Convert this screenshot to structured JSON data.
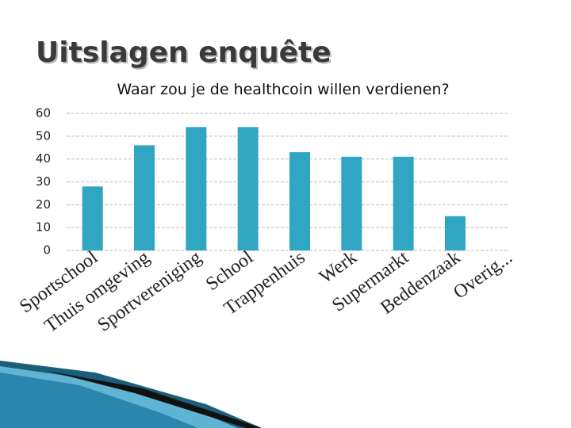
{
  "slide_title": "Uitslagen enquête",
  "chart_data": {
    "type": "bar",
    "title": "Waar zou je de healthcoin willen verdienen?",
    "categories": [
      "Sportschool",
      "Thuis omgeving",
      "Sportvereniging",
      "School",
      "Trappenhuis",
      "Werk",
      "Supermarkt",
      "Beddenzaak",
      "Overig..."
    ],
    "values": [
      28,
      46,
      54,
      54,
      43,
      41,
      41,
      15,
      0
    ],
    "color": "#31a6c2",
    "ylim": [
      0,
      60
    ],
    "yticks": [
      0,
      10,
      20,
      30,
      40,
      50,
      60
    ],
    "grid": true
  }
}
